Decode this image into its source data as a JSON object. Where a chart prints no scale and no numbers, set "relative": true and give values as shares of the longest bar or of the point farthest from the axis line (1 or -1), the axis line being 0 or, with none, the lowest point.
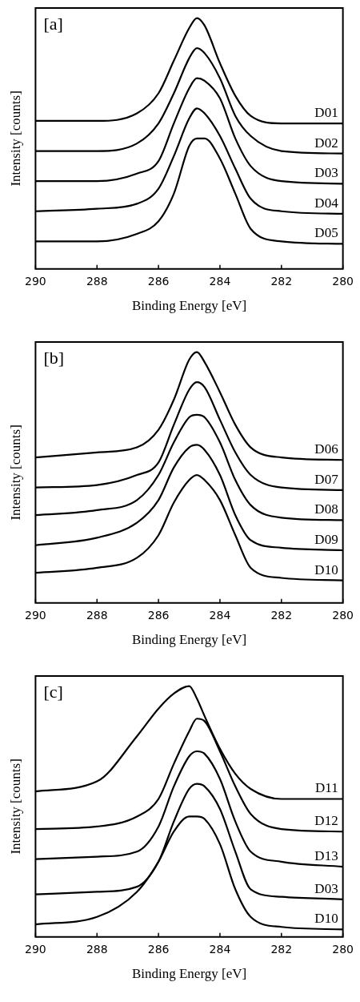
{
  "chart_data": [
    {
      "type": "line",
      "annotations": [
        "[a]"
      ],
      "xlabel": "Binding Energy [eV]",
      "ylabel": "Intensity [counts]",
      "relative": true,
      "xlim": [
        290,
        280
      ],
      "xticks": [
        290,
        288,
        286,
        284,
        282,
        280
      ],
      "grid": false,
      "legend": false,
      "marker": "none",
      "x": [
        290,
        288,
        286.7,
        286,
        285.5,
        285,
        284.75,
        284.5,
        284,
        283.5,
        283,
        282,
        280
      ],
      "series": [
        {
          "name": "D01",
          "color": "#000000",
          "values": [
            0.59,
            0.59,
            0.62,
            0.7,
            0.83,
            0.96,
            1.0,
            0.97,
            0.82,
            0.69,
            0.61,
            0.58,
            0.58
          ]
        },
        {
          "name": "D02",
          "color": "#000000",
          "values": [
            0.47,
            0.47,
            0.5,
            0.58,
            0.7,
            0.84,
            0.88,
            0.86,
            0.76,
            0.61,
            0.53,
            0.47,
            0.46
          ]
        },
        {
          "name": "D03",
          "color": "#000000",
          "values": [
            0.35,
            0.35,
            0.38,
            0.43,
            0.58,
            0.72,
            0.76,
            0.75,
            0.68,
            0.52,
            0.41,
            0.35,
            0.34
          ]
        },
        {
          "name": "D04",
          "color": "#000000",
          "values": [
            0.23,
            0.24,
            0.26,
            0.32,
            0.45,
            0.6,
            0.64,
            0.62,
            0.53,
            0.4,
            0.28,
            0.23,
            0.22
          ]
        },
        {
          "name": "D05",
          "color": "#000000",
          "values": [
            0.11,
            0.11,
            0.14,
            0.19,
            0.3,
            0.49,
            0.52,
            0.52,
            0.44,
            0.3,
            0.16,
            0.11,
            0.1
          ]
        }
      ]
    },
    {
      "type": "line",
      "annotations": [
        "[b]"
      ],
      "xlabel": "Binding Energy [eV]",
      "ylabel": "Intensity [counts]",
      "relative": true,
      "xlim": [
        290,
        280
      ],
      "xticks": [
        290,
        288,
        286,
        284,
        282,
        280
      ],
      "grid": false,
      "legend": false,
      "marker": "none",
      "x": [
        290,
        288,
        286.7,
        286,
        285.5,
        285,
        284.75,
        284.5,
        284,
        283.5,
        283,
        282,
        280
      ],
      "series": [
        {
          "name": "D06",
          "color": "#000000",
          "values": [
            0.58,
            0.6,
            0.62,
            0.69,
            0.81,
            0.97,
            1.0,
            0.96,
            0.84,
            0.71,
            0.62,
            0.58,
            0.57
          ]
        },
        {
          "name": "D07",
          "color": "#000000",
          "values": [
            0.46,
            0.47,
            0.51,
            0.56,
            0.71,
            0.85,
            0.88,
            0.86,
            0.73,
            0.6,
            0.51,
            0.46,
            0.45
          ]
        },
        {
          "name": "D08",
          "color": "#000000",
          "values": [
            0.35,
            0.37,
            0.41,
            0.51,
            0.64,
            0.74,
            0.75,
            0.74,
            0.64,
            0.49,
            0.39,
            0.34,
            0.33
          ]
        },
        {
          "name": "D09",
          "color": "#000000",
          "values": [
            0.23,
            0.26,
            0.32,
            0.41,
            0.54,
            0.62,
            0.63,
            0.61,
            0.51,
            0.35,
            0.25,
            0.22,
            0.21
          ]
        },
        {
          "name": "D10",
          "color": "#000000",
          "values": [
            0.12,
            0.14,
            0.18,
            0.27,
            0.4,
            0.49,
            0.51,
            0.49,
            0.41,
            0.27,
            0.14,
            0.1,
            0.09
          ]
        }
      ]
    },
    {
      "type": "line",
      "annotations": [
        "[c]"
      ],
      "xlabel": "Binding Energy [eV]",
      "ylabel": "Intensity [counts]",
      "relative": true,
      "xlim": [
        290,
        280
      ],
      "xticks": [
        290,
        288,
        286,
        284,
        282,
        280
      ],
      "grid": false,
      "legend": false,
      "marker": "none",
      "x": [
        290,
        288,
        286.7,
        286,
        285.5,
        285,
        284.75,
        284.5,
        284,
        283.5,
        283,
        282,
        280
      ],
      "series": [
        {
          "name": "D11",
          "color": "#000000",
          "values": [
            0.58,
            0.62,
            0.8,
            0.91,
            0.97,
            1.0,
            0.95,
            0.88,
            0.75,
            0.65,
            0.59,
            0.55,
            0.55
          ]
        },
        {
          "name": "D12",
          "color": "#000000",
          "values": [
            0.43,
            0.44,
            0.48,
            0.55,
            0.69,
            0.82,
            0.87,
            0.86,
            0.74,
            0.6,
            0.49,
            0.43,
            0.42
          ]
        },
        {
          "name": "D13",
          "color": "#000000",
          "values": [
            0.31,
            0.32,
            0.34,
            0.44,
            0.6,
            0.72,
            0.74,
            0.73,
            0.63,
            0.46,
            0.34,
            0.3,
            0.28
          ]
        },
        {
          "name": "D03",
          "color": "#000000",
          "values": [
            0.17,
            0.18,
            0.2,
            0.3,
            0.46,
            0.59,
            0.61,
            0.6,
            0.51,
            0.34,
            0.19,
            0.16,
            0.15
          ]
        },
        {
          "name": "D10",
          "color": "#000000",
          "values": [
            0.05,
            0.08,
            0.18,
            0.3,
            0.42,
            0.48,
            0.48,
            0.47,
            0.37,
            0.19,
            0.08,
            0.04,
            0.03
          ]
        }
      ]
    }
  ]
}
